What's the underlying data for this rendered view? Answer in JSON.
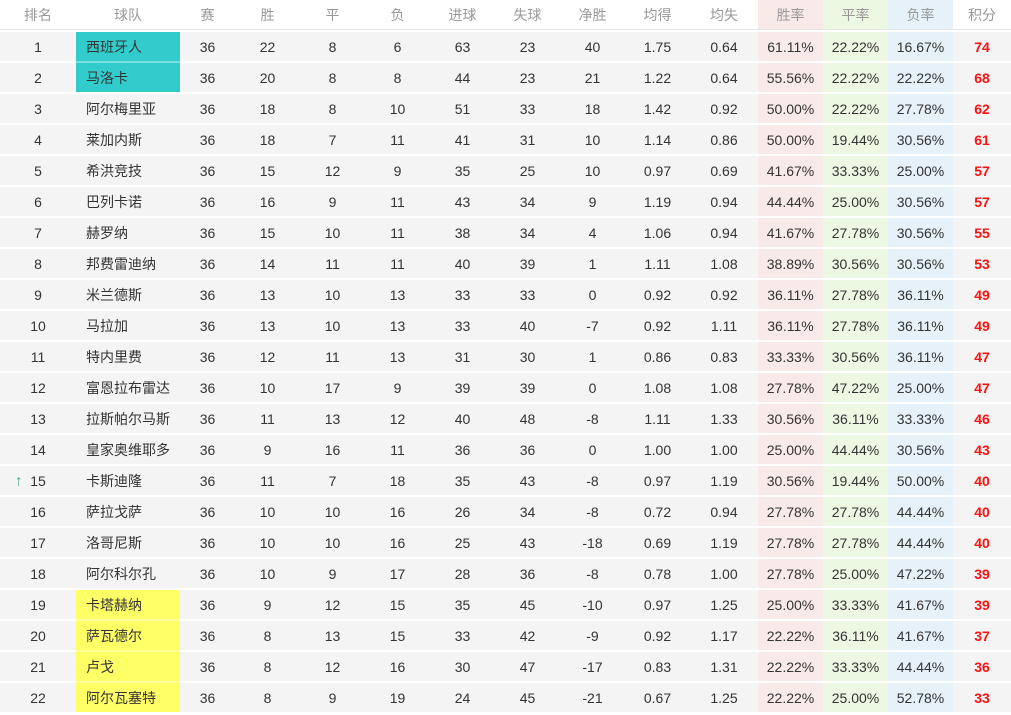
{
  "colors": {
    "row_bg": "#f4f4f4",
    "header_text": "#999999",
    "header_border": "#e4e4e4",
    "cell_text": "#333333",
    "points_text": "#ff1111",
    "up_arrow": "#2aa870",
    "promotion_highlight": "#33cccc",
    "relegation_highlight": "#ffff66",
    "win_rate_col_bg": "#f9eaea",
    "draw_rate_col_bg": "#edf8e3",
    "loss_rate_col_bg": "#e6f1fa"
  },
  "icons": {
    "up_arrow_glyph": "↑"
  },
  "table": {
    "columns": [
      {
        "key": "rank",
        "label": "排名"
      },
      {
        "key": "team",
        "label": "球队"
      },
      {
        "key": "played",
        "label": "赛"
      },
      {
        "key": "wins",
        "label": "胜"
      },
      {
        "key": "draws",
        "label": "平"
      },
      {
        "key": "losses",
        "label": "负"
      },
      {
        "key": "goals_for",
        "label": "进球"
      },
      {
        "key": "goals_against",
        "label": "失球"
      },
      {
        "key": "goal_diff",
        "label": "净胜"
      },
      {
        "key": "avg_scored",
        "label": "均得"
      },
      {
        "key": "avg_conceded",
        "label": "均失"
      },
      {
        "key": "win_rate",
        "label": "胜率"
      },
      {
        "key": "draw_rate",
        "label": "平率"
      },
      {
        "key": "loss_rate",
        "label": "负率"
      },
      {
        "key": "points",
        "label": "积分"
      }
    ],
    "rows": [
      {
        "rank": "1",
        "team": "西班牙人",
        "played": "36",
        "wins": "22",
        "draws": "8",
        "losses": "6",
        "goals_for": "63",
        "goals_against": "23",
        "goal_diff": "40",
        "avg_scored": "1.75",
        "avg_conceded": "0.64",
        "win_rate": "61.11%",
        "draw_rate": "22.22%",
        "loss_rate": "16.67%",
        "points": "74",
        "highlight": "teal",
        "movement": null
      },
      {
        "rank": "2",
        "team": "马洛卡",
        "played": "36",
        "wins": "20",
        "draws": "8",
        "losses": "8",
        "goals_for": "44",
        "goals_against": "23",
        "goal_diff": "21",
        "avg_scored": "1.22",
        "avg_conceded": "0.64",
        "win_rate": "55.56%",
        "draw_rate": "22.22%",
        "loss_rate": "22.22%",
        "points": "68",
        "highlight": "teal",
        "movement": null
      },
      {
        "rank": "3",
        "team": "阿尔梅里亚",
        "played": "36",
        "wins": "18",
        "draws": "8",
        "losses": "10",
        "goals_for": "51",
        "goals_against": "33",
        "goal_diff": "18",
        "avg_scored": "1.42",
        "avg_conceded": "0.92",
        "win_rate": "50.00%",
        "draw_rate": "22.22%",
        "loss_rate": "27.78%",
        "points": "62",
        "highlight": null,
        "movement": null
      },
      {
        "rank": "4",
        "team": "莱加内斯",
        "played": "36",
        "wins": "18",
        "draws": "7",
        "losses": "11",
        "goals_for": "41",
        "goals_against": "31",
        "goal_diff": "10",
        "avg_scored": "1.14",
        "avg_conceded": "0.86",
        "win_rate": "50.00%",
        "draw_rate": "19.44%",
        "loss_rate": "30.56%",
        "points": "61",
        "highlight": null,
        "movement": null
      },
      {
        "rank": "5",
        "team": "希洪竞技",
        "played": "36",
        "wins": "15",
        "draws": "12",
        "losses": "9",
        "goals_for": "35",
        "goals_against": "25",
        "goal_diff": "10",
        "avg_scored": "0.97",
        "avg_conceded": "0.69",
        "win_rate": "41.67%",
        "draw_rate": "33.33%",
        "loss_rate": "25.00%",
        "points": "57",
        "highlight": null,
        "movement": null
      },
      {
        "rank": "6",
        "team": "巴列卡诺",
        "played": "36",
        "wins": "16",
        "draws": "9",
        "losses": "11",
        "goals_for": "43",
        "goals_against": "34",
        "goal_diff": "9",
        "avg_scored": "1.19",
        "avg_conceded": "0.94",
        "win_rate": "44.44%",
        "draw_rate": "25.00%",
        "loss_rate": "30.56%",
        "points": "57",
        "highlight": null,
        "movement": null
      },
      {
        "rank": "7",
        "team": "赫罗纳",
        "played": "36",
        "wins": "15",
        "draws": "10",
        "losses": "11",
        "goals_for": "38",
        "goals_against": "34",
        "goal_diff": "4",
        "avg_scored": "1.06",
        "avg_conceded": "0.94",
        "win_rate": "41.67%",
        "draw_rate": "27.78%",
        "loss_rate": "30.56%",
        "points": "55",
        "highlight": null,
        "movement": null
      },
      {
        "rank": "8",
        "team": "邦费雷迪纳",
        "played": "36",
        "wins": "14",
        "draws": "11",
        "losses": "11",
        "goals_for": "40",
        "goals_against": "39",
        "goal_diff": "1",
        "avg_scored": "1.11",
        "avg_conceded": "1.08",
        "win_rate": "38.89%",
        "draw_rate": "30.56%",
        "loss_rate": "30.56%",
        "points": "53",
        "highlight": null,
        "movement": null
      },
      {
        "rank": "9",
        "team": "米兰德斯",
        "played": "36",
        "wins": "13",
        "draws": "10",
        "losses": "13",
        "goals_for": "33",
        "goals_against": "33",
        "goal_diff": "0",
        "avg_scored": "0.92",
        "avg_conceded": "0.92",
        "win_rate": "36.11%",
        "draw_rate": "27.78%",
        "loss_rate": "36.11%",
        "points": "49",
        "highlight": null,
        "movement": null
      },
      {
        "rank": "10",
        "team": "马拉加",
        "played": "36",
        "wins": "13",
        "draws": "10",
        "losses": "13",
        "goals_for": "33",
        "goals_against": "40",
        "goal_diff": "-7",
        "avg_scored": "0.92",
        "avg_conceded": "1.11",
        "win_rate": "36.11%",
        "draw_rate": "27.78%",
        "loss_rate": "36.11%",
        "points": "49",
        "highlight": null,
        "movement": null
      },
      {
        "rank": "11",
        "team": "特内里费",
        "played": "36",
        "wins": "12",
        "draws": "11",
        "losses": "13",
        "goals_for": "31",
        "goals_against": "30",
        "goal_diff": "1",
        "avg_scored": "0.86",
        "avg_conceded": "0.83",
        "win_rate": "33.33%",
        "draw_rate": "30.56%",
        "loss_rate": "36.11%",
        "points": "47",
        "highlight": null,
        "movement": null
      },
      {
        "rank": "12",
        "team": "富恩拉布雷达",
        "played": "36",
        "wins": "10",
        "draws": "17",
        "losses": "9",
        "goals_for": "39",
        "goals_against": "39",
        "goal_diff": "0",
        "avg_scored": "1.08",
        "avg_conceded": "1.08",
        "win_rate": "27.78%",
        "draw_rate": "47.22%",
        "loss_rate": "25.00%",
        "points": "47",
        "highlight": null,
        "movement": null
      },
      {
        "rank": "13",
        "team": "拉斯帕尔马斯",
        "played": "36",
        "wins": "11",
        "draws": "13",
        "losses": "12",
        "goals_for": "40",
        "goals_against": "48",
        "goal_diff": "-8",
        "avg_scored": "1.11",
        "avg_conceded": "1.33",
        "win_rate": "30.56%",
        "draw_rate": "36.11%",
        "loss_rate": "33.33%",
        "points": "46",
        "highlight": null,
        "movement": null
      },
      {
        "rank": "14",
        "team": "皇家奥维耶多",
        "played": "36",
        "wins": "9",
        "draws": "16",
        "losses": "11",
        "goals_for": "36",
        "goals_against": "36",
        "goal_diff": "0",
        "avg_scored": "1.00",
        "avg_conceded": "1.00",
        "win_rate": "25.00%",
        "draw_rate": "44.44%",
        "loss_rate": "30.56%",
        "points": "43",
        "highlight": null,
        "movement": null
      },
      {
        "rank": "15",
        "team": "卡斯迪隆",
        "played": "36",
        "wins": "11",
        "draws": "7",
        "losses": "18",
        "goals_for": "35",
        "goals_against": "43",
        "goal_diff": "-8",
        "avg_scored": "0.97",
        "avg_conceded": "1.19",
        "win_rate": "30.56%",
        "draw_rate": "19.44%",
        "loss_rate": "50.00%",
        "points": "40",
        "highlight": null,
        "movement": "up"
      },
      {
        "rank": "16",
        "team": "萨拉戈萨",
        "played": "36",
        "wins": "10",
        "draws": "10",
        "losses": "16",
        "goals_for": "26",
        "goals_against": "34",
        "goal_diff": "-8",
        "avg_scored": "0.72",
        "avg_conceded": "0.94",
        "win_rate": "27.78%",
        "draw_rate": "27.78%",
        "loss_rate": "44.44%",
        "points": "40",
        "highlight": null,
        "movement": null
      },
      {
        "rank": "17",
        "team": "洛哥尼斯",
        "played": "36",
        "wins": "10",
        "draws": "10",
        "losses": "16",
        "goals_for": "25",
        "goals_against": "43",
        "goal_diff": "-18",
        "avg_scored": "0.69",
        "avg_conceded": "1.19",
        "win_rate": "27.78%",
        "draw_rate": "27.78%",
        "loss_rate": "44.44%",
        "points": "40",
        "highlight": null,
        "movement": null
      },
      {
        "rank": "18",
        "team": "阿尔科尔孔",
        "played": "36",
        "wins": "10",
        "draws": "9",
        "losses": "17",
        "goals_for": "28",
        "goals_against": "36",
        "goal_diff": "-8",
        "avg_scored": "0.78",
        "avg_conceded": "1.00",
        "win_rate": "27.78%",
        "draw_rate": "25.00%",
        "loss_rate": "47.22%",
        "points": "39",
        "highlight": null,
        "movement": null
      },
      {
        "rank": "19",
        "team": "卡塔赫纳",
        "played": "36",
        "wins": "9",
        "draws": "12",
        "losses": "15",
        "goals_for": "35",
        "goals_against": "45",
        "goal_diff": "-10",
        "avg_scored": "0.97",
        "avg_conceded": "1.25",
        "win_rate": "25.00%",
        "draw_rate": "33.33%",
        "loss_rate": "41.67%",
        "points": "39",
        "highlight": "yellow",
        "movement": null
      },
      {
        "rank": "20",
        "team": "萨瓦德尔",
        "played": "36",
        "wins": "8",
        "draws": "13",
        "losses": "15",
        "goals_for": "33",
        "goals_against": "42",
        "goal_diff": "-9",
        "avg_scored": "0.92",
        "avg_conceded": "1.17",
        "win_rate": "22.22%",
        "draw_rate": "36.11%",
        "loss_rate": "41.67%",
        "points": "37",
        "highlight": "yellow",
        "movement": null
      },
      {
        "rank": "21",
        "team": "卢戈",
        "played": "36",
        "wins": "8",
        "draws": "12",
        "losses": "16",
        "goals_for": "30",
        "goals_against": "47",
        "goal_diff": "-17",
        "avg_scored": "0.83",
        "avg_conceded": "1.31",
        "win_rate": "22.22%",
        "draw_rate": "33.33%",
        "loss_rate": "44.44%",
        "points": "36",
        "highlight": "yellow",
        "movement": null
      },
      {
        "rank": "22",
        "team": "阿尔瓦塞特",
        "played": "36",
        "wins": "8",
        "draws": "9",
        "losses": "19",
        "goals_for": "24",
        "goals_against": "45",
        "goal_diff": "-21",
        "avg_scored": "0.67",
        "avg_conceded": "1.25",
        "win_rate": "22.22%",
        "draw_rate": "25.00%",
        "loss_rate": "52.78%",
        "points": "33",
        "highlight": "yellow",
        "movement": null
      }
    ]
  }
}
